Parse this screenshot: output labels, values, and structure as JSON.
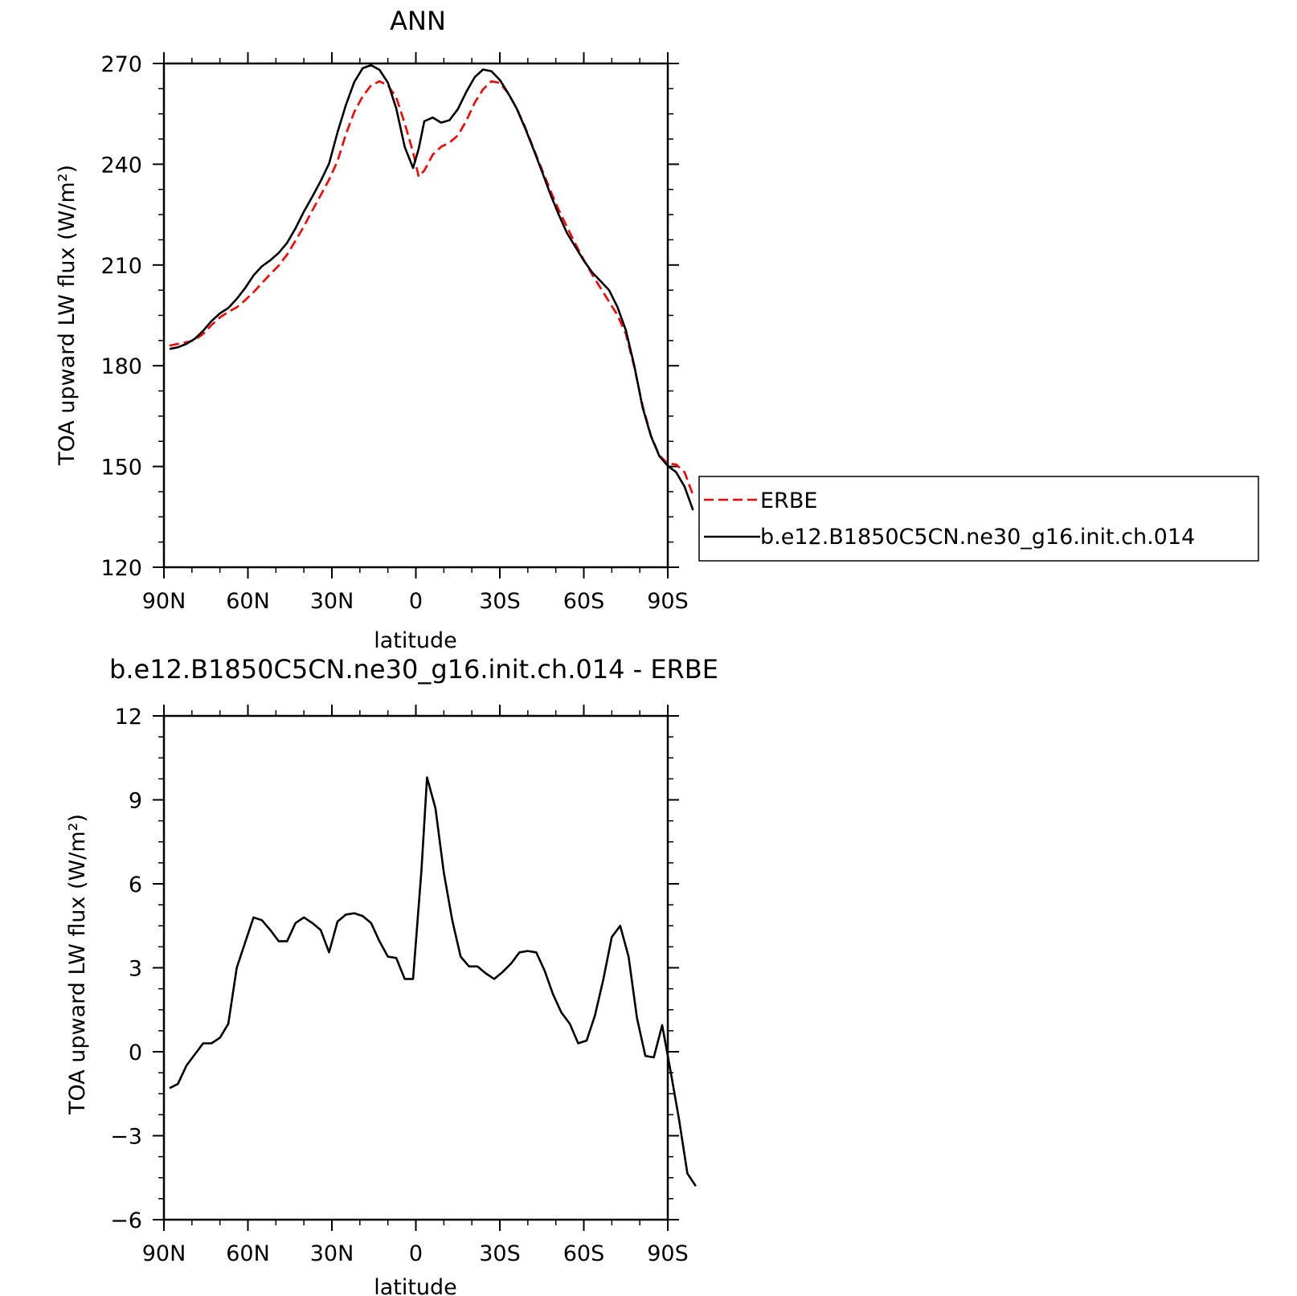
{
  "chart_data": [
    {
      "type": "line",
      "title": "ANN",
      "xlabel": "latitude",
      "ylabel": "TOA upward LW flux (W/m²)",
      "xlim": [
        90,
        -90
      ],
      "ylim": [
        120,
        270
      ],
      "x_ticks": [
        {
          "value": 90,
          "label": "90N"
        },
        {
          "value": 60,
          "label": "60N"
        },
        {
          "value": 30,
          "label": "30N"
        },
        {
          "value": 0,
          "label": "0"
        },
        {
          "value": -30,
          "label": "30S"
        },
        {
          "value": -60,
          "label": "60S"
        },
        {
          "value": -90,
          "label": "90S"
        }
      ],
      "y_ticks": [
        120,
        150,
        180,
        210,
        240,
        270
      ],
      "legend_position": "right",
      "series": [
        {
          "name": "ERBE",
          "color": "#ff0000",
          "style": "dashed",
          "points": [
            [
              88,
              186
            ],
            [
              85,
              186.5
            ],
            [
              82,
              187
            ],
            [
              79,
              187.6
            ],
            [
              76,
              189.5
            ],
            [
              73,
              192.1
            ],
            [
              70,
              194.4
            ],
            [
              67,
              196
            ],
            [
              64,
              197.4
            ],
            [
              61,
              199.5
            ],
            [
              58,
              201.9
            ],
            [
              55,
              204.6
            ],
            [
              52,
              207.3
            ],
            [
              49,
              209.8
            ],
            [
              46,
              213.1
            ],
            [
              43,
              217.2
            ],
            [
              40,
              221.5
            ],
            [
              37,
              226.2
            ],
            [
              34,
              230.8
            ],
            [
              31,
              235.4
            ],
            [
              28,
              240.9
            ],
            [
              25,
              248.9
            ],
            [
              22,
              255.6
            ],
            [
              19,
              260.2
            ],
            [
              16,
              263.5
            ],
            [
              13,
              264.7
            ],
            [
              10,
              263.5
            ],
            [
              7,
              259.9
            ],
            [
              4,
              252.2
            ],
            [
              1,
              243.6
            ],
            [
              -1,
              236.3
            ],
            [
              -3,
              238.1
            ],
            [
              -6,
              242.8
            ],
            [
              -9,
              245.2
            ],
            [
              -12,
              246.4
            ],
            [
              -15,
              248.6
            ],
            [
              -18,
              252.9
            ],
            [
              -21,
              258.3
            ],
            [
              -24,
              262.3
            ],
            [
              -27,
              264.7
            ],
            [
              -30,
              264.2
            ],
            [
              -33,
              261.1
            ],
            [
              -36,
              256.7
            ],
            [
              -39,
              251.1
            ],
            [
              -42,
              244.8
            ],
            [
              -45,
              238.5
            ],
            [
              -48,
              232.3
            ],
            [
              -51,
              226.5
            ],
            [
              -54,
              221.3
            ],
            [
              -57,
              216.3
            ],
            [
              -60,
              211.5
            ],
            [
              -63,
              207.2
            ],
            [
              -66,
              203.1
            ],
            [
              -69,
              199.1
            ],
            [
              -72,
              195.1
            ],
            [
              -75,
              189.5
            ],
            [
              -78,
              179.7
            ],
            [
              -81,
              168.2
            ],
            [
              -84,
              159.2
            ],
            [
              -87,
              153.3
            ],
            [
              -90,
              150.9
            ],
            [
              -93,
              150.6
            ],
            [
              -96,
              148.3
            ],
            [
              -99,
              141.5
            ]
          ]
        },
        {
          "name": "b.e12.B1850C5CN.ne30_g16.init.ch.014",
          "color": "#000000",
          "style": "solid",
          "points": [
            [
              88,
              185
            ],
            [
              85,
              185.5
            ],
            [
              82,
              186.5
            ],
            [
              79,
              188
            ],
            [
              76,
              190.4
            ],
            [
              73,
              193.3
            ],
            [
              70,
              195.6
            ],
            [
              67,
              197.2
            ],
            [
              64,
              199.9
            ],
            [
              61,
              203.1
            ],
            [
              58,
              206.9
            ],
            [
              55,
              209.6
            ],
            [
              52,
              211.4
            ],
            [
              49,
              213.6
            ],
            [
              46,
              216.6
            ],
            [
              43,
              220.9
            ],
            [
              40,
              225.9
            ],
            [
              37,
              230.3
            ],
            [
              34,
              235
            ],
            [
              31,
              240.2
            ],
            [
              28,
              249.5
            ],
            [
              25,
              257.6
            ],
            [
              22,
              264.5
            ],
            [
              19,
              268.6
            ],
            [
              16,
              269.5
            ],
            [
              13,
              268.1
            ],
            [
              10,
              264.3
            ],
            [
              7,
              256.6
            ],
            [
              4,
              245.2
            ],
            [
              1,
              238.9
            ],
            [
              -1,
              244.6
            ],
            [
              -3,
              252.8
            ],
            [
              -6,
              253.9
            ],
            [
              -9,
              252.4
            ],
            [
              -12,
              253.1
            ],
            [
              -15,
              256.4
            ],
            [
              -18,
              261.5
            ],
            [
              -21,
              265.9
            ],
            [
              -24,
              268.2
            ],
            [
              -27,
              267.7
            ],
            [
              -30,
              265.1
            ],
            [
              -33,
              261.1
            ],
            [
              -36,
              256.6
            ],
            [
              -39,
              250.8
            ],
            [
              -42,
              244.5
            ],
            [
              -45,
              237.9
            ],
            [
              -48,
              231.2
            ],
            [
              -51,
              225.1
            ],
            [
              -54,
              219.5
            ],
            [
              -57,
              215.4
            ],
            [
              -60,
              211.3
            ],
            [
              -63,
              207.8
            ],
            [
              -66,
              205.2
            ],
            [
              -69,
              202.5
            ],
            [
              -72,
              197.5
            ],
            [
              -75,
              190.6
            ],
            [
              -78,
              180.2
            ],
            [
              -81,
              167.6
            ],
            [
              -84,
              159
            ],
            [
              -87,
              153.1
            ],
            [
              -90,
              150.2
            ],
            [
              -93,
              148.3
            ],
            [
              -96,
              144
            ],
            [
              -99,
              137
            ]
          ]
        }
      ]
    },
    {
      "type": "line",
      "title": "b.e12.B1850C5CN.ne30_g16.init.ch.014 - ERBE",
      "xlabel": "latitude",
      "ylabel": "TOA upward LW flux (W/m²)",
      "xlim": [
        90,
        -90
      ],
      "ylim": [
        -6,
        12
      ],
      "x_ticks": [
        {
          "value": 90,
          "label": "90N"
        },
        {
          "value": 60,
          "label": "60N"
        },
        {
          "value": 30,
          "label": "30N"
        },
        {
          "value": 0,
          "label": "0"
        },
        {
          "value": -30,
          "label": "30S"
        },
        {
          "value": -60,
          "label": "60S"
        },
        {
          "value": -90,
          "label": "90S"
        }
      ],
      "y_ticks": [
        -6,
        -3,
        0,
        3,
        6,
        9,
        12
      ],
      "series": [
        {
          "color": "#000000",
          "style": "solid",
          "points": [
            [
              88,
              -1.3
            ],
            [
              85,
              -1.15
            ],
            [
              82,
              -0.5
            ],
            [
              79,
              -0.1
            ],
            [
              76,
              0.3
            ],
            [
              73,
              0.3
            ],
            [
              70,
              0.5
            ],
            [
              67,
              1.0
            ],
            [
              64,
              3.0
            ],
            [
              61,
              3.9
            ],
            [
              58,
              4.8
            ],
            [
              55,
              4.7
            ],
            [
              52,
              4.35
            ],
            [
              49,
              3.95
            ],
            [
              46,
              3.95
            ],
            [
              43,
              4.6
            ],
            [
              40,
              4.8
            ],
            [
              37,
              4.6
            ],
            [
              34,
              4.35
            ],
            [
              31,
              3.55
            ],
            [
              28,
              4.65
            ],
            [
              25,
              4.9
            ],
            [
              22,
              4.95
            ],
            [
              19,
              4.85
            ],
            [
              16,
              4.6
            ],
            [
              13,
              3.95
            ],
            [
              10,
              3.4
            ],
            [
              7,
              3.35
            ],
            [
              4,
              2.6
            ],
            [
              1,
              2.6
            ],
            [
              -2,
              6.5
            ],
            [
              -4,
              9.8
            ],
            [
              -7,
              8.7
            ],
            [
              -10,
              6.4
            ],
            [
              -13,
              4.7
            ],
            [
              -16,
              3.4
            ],
            [
              -19,
              3.05
            ],
            [
              -22,
              3.05
            ],
            [
              -25,
              2.8
            ],
            [
              -28,
              2.6
            ],
            [
              -31,
              2.85
            ],
            [
              -34,
              3.15
            ],
            [
              -37,
              3.55
            ],
            [
              -40,
              3.6
            ],
            [
              -43,
              3.55
            ],
            [
              -46,
              2.9
            ],
            [
              -49,
              2.05
            ],
            [
              -52,
              1.4
            ],
            [
              -55,
              1.0
            ],
            [
              -58,
              0.3
            ],
            [
              -61,
              0.4
            ],
            [
              -64,
              1.3
            ],
            [
              -67,
              2.6
            ],
            [
              -70,
              4.1
            ],
            [
              -73,
              4.5
            ],
            [
              -76,
              3.4
            ],
            [
              -79,
              1.2
            ],
            [
              -82,
              -0.15
            ],
            [
              -85,
              -0.2
            ],
            [
              -88,
              0.95
            ],
            [
              -91,
              -0.7
            ],
            [
              -94,
              -2.4
            ],
            [
              -97,
              -4.35
            ],
            [
              -100,
              -4.8
            ]
          ]
        }
      ]
    }
  ]
}
